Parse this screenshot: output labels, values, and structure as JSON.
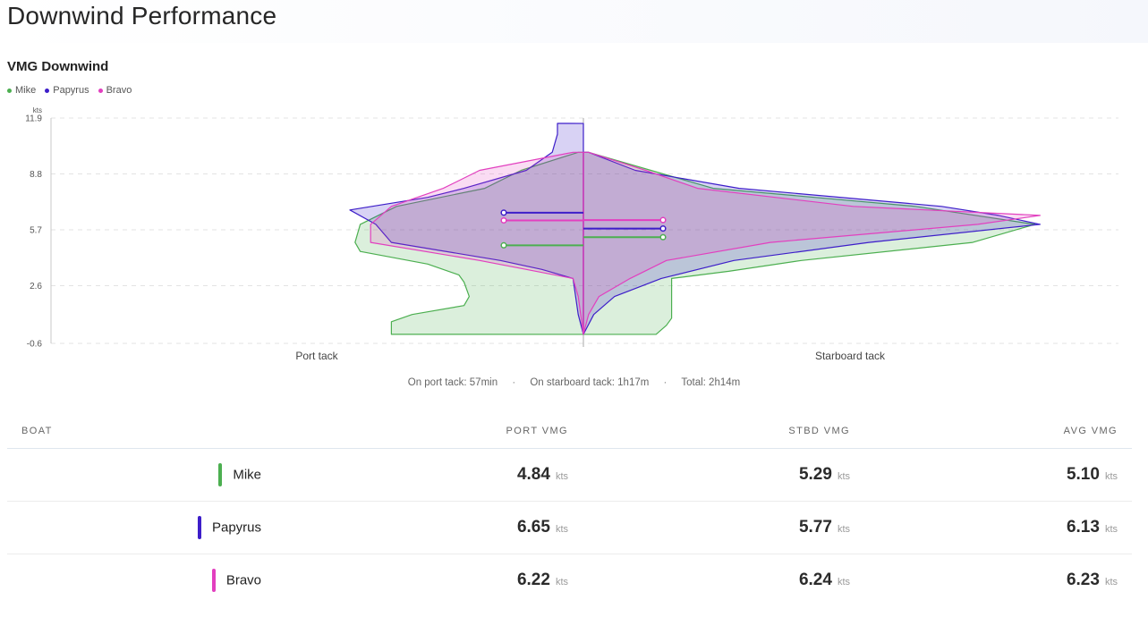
{
  "page": {
    "title": "Downwind Performance"
  },
  "section": {
    "title": "VMG Downwind"
  },
  "colors": {
    "Mike": "#4caf50",
    "Papyrus": "#3d1ec9",
    "Bravo": "#e23fbf"
  },
  "legend": [
    {
      "name": "Mike",
      "color": "#4caf50"
    },
    {
      "name": "Papyrus",
      "color": "#3d1ec9"
    },
    {
      "name": "Bravo",
      "color": "#e23fbf"
    }
  ],
  "chart_data": {
    "type": "violin",
    "title": "VMG Downwind",
    "y_unit": "kts",
    "ylim": [
      -0.6,
      11.9
    ],
    "y_ticks": [
      "11.9",
      "8.8",
      "5.7",
      "2.6",
      "-0.6"
    ],
    "categories": [
      "Port tack",
      "Starboard tack"
    ],
    "grid": true,
    "legend_position": "top-left",
    "series": [
      {
        "name": "Mike",
        "color": "#4caf50",
        "port_mean": 4.84,
        "stbd_mean": 5.29,
        "port_density": [
          [
            -0.1,
            0.37
          ],
          [
            0.6,
            0.37
          ],
          [
            1.0,
            0.33
          ],
          [
            1.5,
            0.23
          ],
          [
            2.0,
            0.22
          ],
          [
            2.8,
            0.23
          ],
          [
            3.2,
            0.24
          ],
          [
            3.8,
            0.3
          ],
          [
            4.5,
            0.43
          ],
          [
            5.0,
            0.44
          ],
          [
            6.0,
            0.43
          ],
          [
            7.0,
            0.36
          ],
          [
            8.0,
            0.19
          ],
          [
            9.0,
            0.12
          ],
          [
            10.0,
            0.01
          ]
        ],
        "stbd_density": [
          [
            -0.1,
            0.14
          ],
          [
            0.4,
            0.16
          ],
          [
            0.8,
            0.17
          ],
          [
            1.3,
            0.17
          ],
          [
            2.0,
            0.17
          ],
          [
            3.0,
            0.17
          ],
          [
            3.4,
            0.28
          ],
          [
            4.0,
            0.42
          ],
          [
            5.0,
            0.75
          ],
          [
            6.0,
            0.87
          ],
          [
            7.0,
            0.64
          ],
          [
            8.0,
            0.25
          ],
          [
            9.0,
            0.13
          ],
          [
            10.0,
            0.01
          ]
        ]
      },
      {
        "name": "Papyrus",
        "color": "#3d1ec9",
        "port_mean": 6.65,
        "stbd_mean": 5.77,
        "port_density": [
          [
            -0.1,
            0.0
          ],
          [
            1.0,
            0.01
          ],
          [
            3.0,
            0.02
          ],
          [
            3.5,
            0.08
          ],
          [
            4.0,
            0.16
          ],
          [
            5.0,
            0.37
          ],
          [
            6.0,
            0.4
          ],
          [
            6.8,
            0.45
          ],
          [
            7.5,
            0.3
          ],
          [
            8.0,
            0.23
          ],
          [
            9.0,
            0.11
          ],
          [
            10.0,
            0.06
          ],
          [
            11.0,
            0.05
          ],
          [
            11.6,
            0.05
          ]
        ],
        "stbd_density": [
          [
            -0.1,
            0.0
          ],
          [
            1.0,
            0.02
          ],
          [
            2.0,
            0.06
          ],
          [
            3.0,
            0.15
          ],
          [
            4.0,
            0.29
          ],
          [
            5.0,
            0.55
          ],
          [
            6.0,
            0.88
          ],
          [
            6.5,
            0.8
          ],
          [
            7.0,
            0.69
          ],
          [
            8.0,
            0.3
          ],
          [
            9.0,
            0.1
          ],
          [
            10.0,
            0.01
          ]
        ]
      },
      {
        "name": "Bravo",
        "color": "#e23fbf",
        "port_mean": 6.22,
        "stbd_mean": 6.24,
        "port_density": [
          [
            -0.1,
            0.0
          ],
          [
            2.0,
            0.01
          ],
          [
            3.0,
            0.02
          ],
          [
            3.5,
            0.11
          ],
          [
            4.0,
            0.2
          ],
          [
            5.0,
            0.41
          ],
          [
            6.0,
            0.41
          ],
          [
            7.0,
            0.37
          ],
          [
            8.0,
            0.27
          ],
          [
            9.0,
            0.2
          ],
          [
            10.0,
            0.02
          ]
        ],
        "stbd_density": [
          [
            -0.1,
            0.0
          ],
          [
            1.0,
            0.01
          ],
          [
            2.0,
            0.03
          ],
          [
            3.0,
            0.09
          ],
          [
            4.0,
            0.16
          ],
          [
            5.0,
            0.36
          ],
          [
            6.0,
            0.76
          ],
          [
            6.5,
            0.88
          ],
          [
            7.0,
            0.52
          ],
          [
            8.0,
            0.22
          ],
          [
            9.0,
            0.12
          ],
          [
            10.0,
            0.01
          ]
        ]
      }
    ]
  },
  "summary": {
    "port": "On port tack: 57min",
    "stbd": "On starboard tack: 1h17m",
    "total": "Total: 2h14m",
    "separator": "·"
  },
  "table": {
    "headers": {
      "boat": "BOAT",
      "port": "PORT VMG",
      "stbd": "STBD VMG",
      "avg": "AVG VMG"
    },
    "unit": "kts",
    "rows": [
      {
        "boat": "Mike",
        "color": "#4caf50",
        "port": "4.84",
        "stbd": "5.29",
        "avg": "5.10"
      },
      {
        "boat": "Papyrus",
        "color": "#3d1ec9",
        "port": "6.65",
        "stbd": "5.77",
        "avg": "6.13"
      },
      {
        "boat": "Bravo",
        "color": "#e23fbf",
        "port": "6.22",
        "stbd": "6.24",
        "avg": "6.23"
      }
    ]
  }
}
